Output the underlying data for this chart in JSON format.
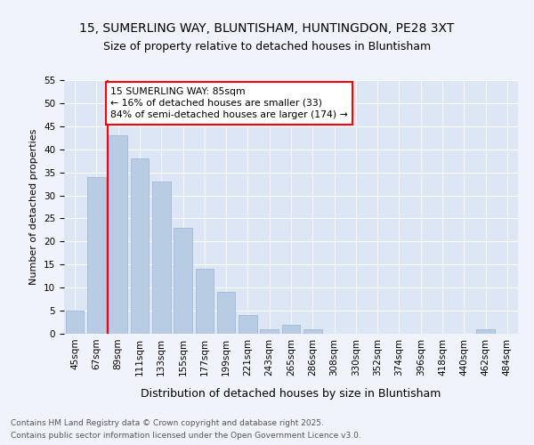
{
  "title": "15, SUMERLING WAY, BLUNTISHAM, HUNTINGDON, PE28 3XT",
  "subtitle": "Size of property relative to detached houses in Bluntisham",
  "xlabel": "Distribution of detached houses by size in Bluntisham",
  "ylabel": "Number of detached properties",
  "categories": [
    "45sqm",
    "67sqm",
    "89sqm",
    "111sqm",
    "133sqm",
    "155sqm",
    "177sqm",
    "199sqm",
    "221sqm",
    "243sqm",
    "265sqm",
    "286sqm",
    "308sqm",
    "330sqm",
    "352sqm",
    "374sqm",
    "396sqm",
    "418sqm",
    "440sqm",
    "462sqm",
    "484sqm"
  ],
  "values": [
    5,
    34,
    43,
    38,
    33,
    23,
    14,
    9,
    4,
    1,
    2,
    1,
    0,
    0,
    0,
    0,
    0,
    0,
    0,
    1,
    0
  ],
  "bar_color": "#b8cce4",
  "bar_edgecolor": "#a0b8d8",
  "annotation_text_line1": "15 SUMERLING WAY: 85sqm",
  "annotation_text_line2": "← 16% of detached houses are smaller (33)",
  "annotation_text_line3": "84% of semi-detached houses are larger (174) →",
  "marker_bin_index": 2,
  "ylim": [
    0,
    55
  ],
  "yticks": [
    0,
    5,
    10,
    15,
    20,
    25,
    30,
    35,
    40,
    45,
    50,
    55
  ],
  "footer_line1": "Contains HM Land Registry data © Crown copyright and database right 2025.",
  "footer_line2": "Contains public sector information licensed under the Open Government Licence v3.0.",
  "background_color": "#f0f4fa",
  "plot_background_color": "#dce6f4",
  "grid_color": "#ffffff",
  "title_fontsize": 10,
  "subtitle_fontsize": 9,
  "ylabel_fontsize": 8,
  "xlabel_fontsize": 9,
  "tick_fontsize": 7.5,
  "footer_fontsize": 6.5
}
